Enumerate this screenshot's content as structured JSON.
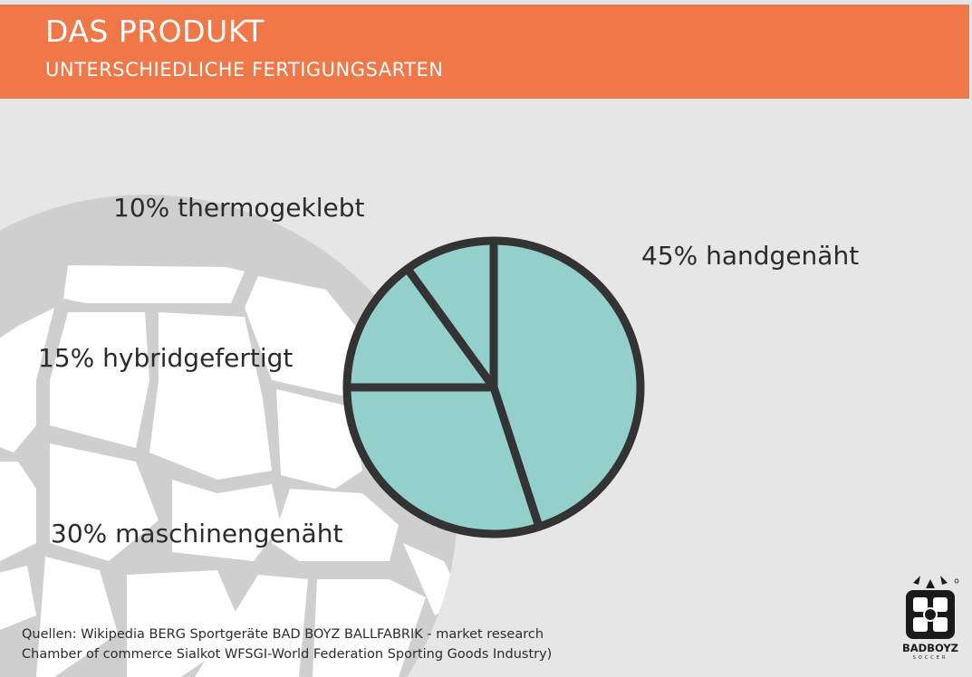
{
  "header": {
    "title": "DAS PRODUKT",
    "subtitle": "UNTERSCHIEDLICHE FERTIGUNGSARTEN"
  },
  "colors": {
    "header_bg": "#f07748",
    "background": "#e6e6e6",
    "slice_fill": "#93cfcb",
    "slice_stroke": "#333333"
  },
  "chart_data": {
    "type": "pie",
    "labels": [
      "45% handgenäht",
      "30% maschinengenäht",
      "15% hybridgefertigt",
      "10% thermogeklebt"
    ],
    "categories": [
      "handgenäht",
      "maschinengenäht",
      "hybridgefertigt",
      "thermogeklebt"
    ],
    "values": [
      45,
      30,
      15,
      10
    ],
    "unit": "%",
    "start_angle_deg": 0,
    "direction": "clockwise"
  },
  "sources": {
    "line1": "Quellen: Wikipedia BERG Sportgeräte BAD BOYZ BALLFABRIK - market research",
    "line2": "Chamber of commerce Sialkot WFSGI-World Federation Sporting Goods Industry)"
  },
  "logo": {
    "name": "BADBOYZ",
    "sub": "SOCCER"
  }
}
